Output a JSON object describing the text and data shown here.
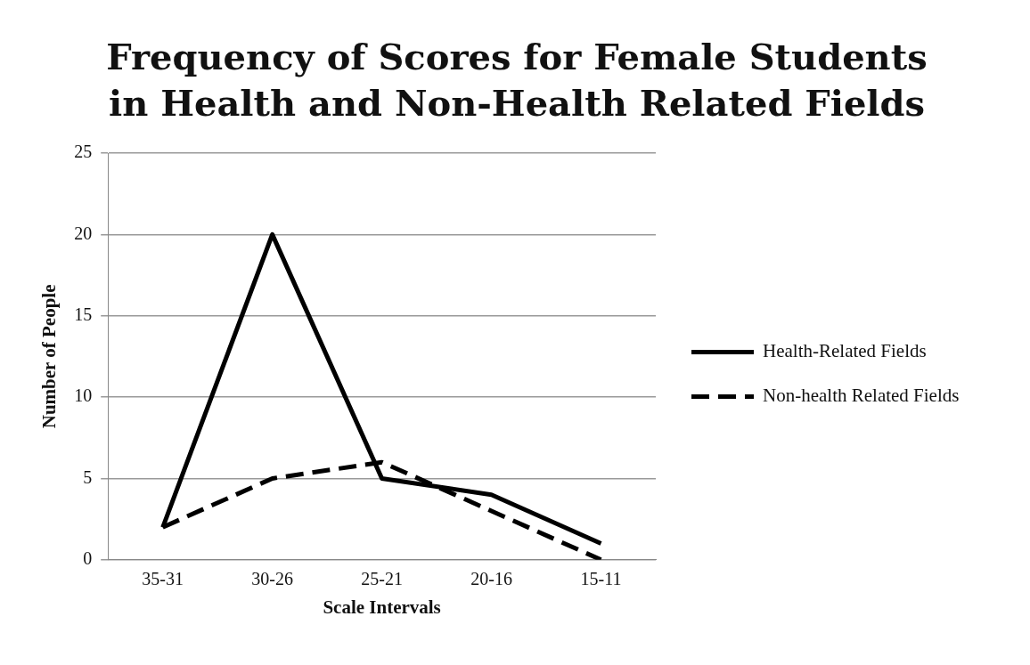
{
  "chart_data": {
    "type": "line",
    "title": "Frequency of Scores for Female Students in Health and Non-Health Related Fields",
    "xlabel": "Scale Intervals",
    "ylabel": "Number of People",
    "categories": [
      "35-31",
      "30-26",
      "25-21",
      "20-16",
      "15-11"
    ],
    "series": [
      {
        "name": "Health-Related Fields",
        "color": "#000000",
        "values": [
          2,
          20,
          5,
          4,
          1
        ],
        "line_style": "solid"
      },
      {
        "name": "Non-health Related Fields",
        "color": "#000000",
        "values": [
          2,
          5,
          6,
          3,
          0
        ],
        "line_style": "dashed"
      }
    ],
    "ylim": [
      0,
      25
    ],
    "yticks": [
      0,
      5,
      10,
      15,
      20,
      25
    ],
    "grid": "y",
    "legend": "right",
    "marker": "none"
  }
}
